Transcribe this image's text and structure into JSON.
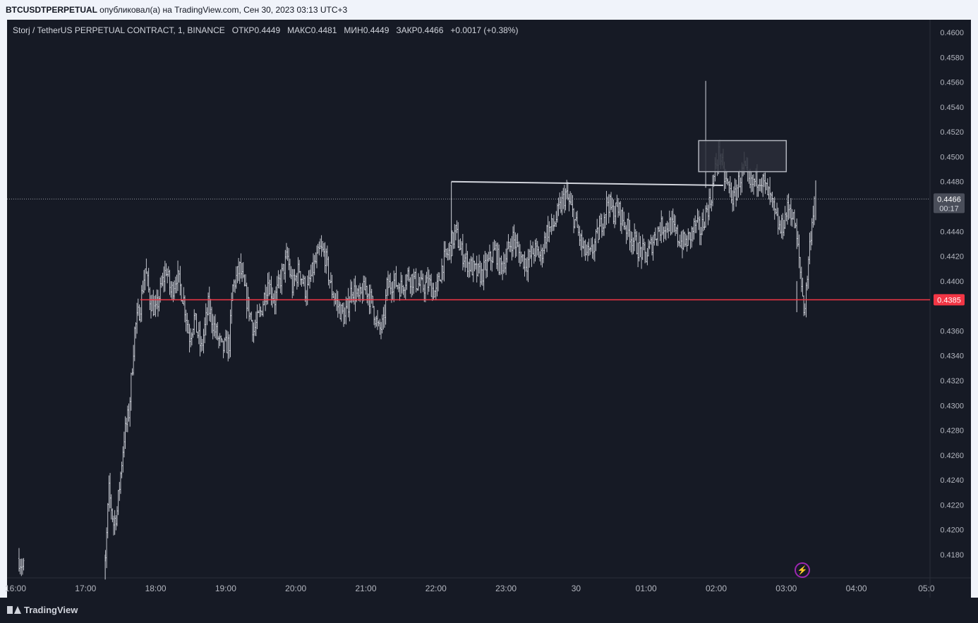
{
  "header": {
    "symbol": "BTCUSDTPERPETUAL",
    "published": "опубликовал(а) на TradingView.com, Сен 30, 2023 03:13 UTC+3"
  },
  "legend": {
    "title": "Storj / TetherUS PERPETUAL CONTRACT, 1, BINANCE",
    "open_label": "ОТКР",
    "open": "0.4449",
    "high_label": "МАКС",
    "high": "0.4481",
    "low_label": "МИН",
    "low": "0.4449",
    "close_label": "ЗАКР",
    "close": "0.4466",
    "change": "+0.0017 (+0.38%)"
  },
  "branding": {
    "logo_text": "TradingView"
  },
  "price_scale_badges": {
    "last_price": "0.4466",
    "countdown": "00:17",
    "level_price": "0.4385"
  },
  "chart_data": {
    "type": "bar",
    "subtype": "ohlc-minute",
    "x_axis_labels": [
      "16:00",
      "17:00",
      "18:00",
      "19:00",
      "20:00",
      "21:00",
      "22:00",
      "23:00",
      "30",
      "01:00",
      "02:00",
      "03:00",
      "04:00",
      "05:0"
    ],
    "y_ticks": [
      "0.4600",
      "0.4580",
      "0.4560",
      "0.4540",
      "0.4520",
      "0.4500",
      "0.4480",
      "0.4440",
      "0.4420",
      "0.4400",
      "0.4360",
      "0.4340",
      "0.4320",
      "0.4300",
      "0.4280",
      "0.4260",
      "0.4240",
      "0.4220",
      "0.4200",
      "0.4180"
    ],
    "ylim": [
      0.416,
      0.461
    ],
    "xlim_hours": [
      16.0,
      21.1
    ],
    "grid": false,
    "colors": {
      "background": "#161a25",
      "bars": "#d1d4dc",
      "level": "#f23645",
      "last_price_badge": "#4a4e5a",
      "text": "#b2b5be",
      "box_fill": "#2a2e39"
    },
    "close_path": [
      [
        16.05,
        0.4177
      ],
      [
        16.1,
        0.417
      ],
      [
        17.28,
        0.417
      ],
      [
        17.33,
        0.4232
      ],
      [
        17.4,
        0.4205
      ],
      [
        17.45,
        0.4215
      ],
      [
        17.5,
        0.4245
      ],
      [
        17.55,
        0.4275
      ],
      [
        17.62,
        0.4295
      ],
      [
        17.7,
        0.436
      ],
      [
        17.78,
        0.438
      ],
      [
        17.85,
        0.441
      ],
      [
        17.92,
        0.4385
      ],
      [
        18.0,
        0.4375
      ],
      [
        18.08,
        0.4395
      ],
      [
        18.15,
        0.441
      ],
      [
        18.22,
        0.439
      ],
      [
        18.3,
        0.4405
      ],
      [
        18.4,
        0.4385
      ],
      [
        18.48,
        0.4355
      ],
      [
        18.55,
        0.437
      ],
      [
        18.65,
        0.4345
      ],
      [
        18.75,
        0.438
      ],
      [
        18.85,
        0.436
      ],
      [
        18.95,
        0.4345
      ],
      [
        19.05,
        0.435
      ],
      [
        19.1,
        0.4395
      ],
      [
        19.2,
        0.441
      ],
      [
        19.3,
        0.4385
      ],
      [
        19.4,
        0.436
      ],
      [
        19.5,
        0.4375
      ],
      [
        19.6,
        0.44
      ],
      [
        19.7,
        0.4385
      ],
      [
        19.8,
        0.4405
      ],
      [
        19.88,
        0.442
      ],
      [
        19.95,
        0.4395
      ],
      [
        20.05,
        0.441
      ],
      [
        20.15,
        0.439
      ],
      [
        20.25,
        0.441
      ],
      [
        20.35,
        0.4425
      ],
      [
        20.42,
        0.442
      ],
      [
        20.5,
        0.4395
      ],
      [
        20.6,
        0.438
      ],
      [
        20.7,
        0.437
      ],
      [
        20.8,
        0.4395
      ],
      [
        20.9,
        0.4385
      ],
      [
        21.0,
        0.4395
      ],
      [
        21.1,
        0.438
      ],
      [
        21.18,
        0.436
      ],
      [
        21.25,
        0.4365
      ],
      [
        21.3,
        0.4395
      ],
      [
        21.4,
        0.44
      ],
      [
        21.5,
        0.4395
      ],
      [
        21.6,
        0.4405
      ],
      [
        21.7,
        0.44
      ],
      [
        21.8,
        0.4395
      ],
      [
        21.9,
        0.4398
      ],
      [
        22.0,
        0.439
      ],
      [
        22.1,
        0.4415
      ],
      [
        22.2,
        0.4425
      ],
      [
        22.28,
        0.444
      ],
      [
        22.35,
        0.4425
      ],
      [
        22.45,
        0.4415
      ],
      [
        22.55,
        0.4408
      ],
      [
        22.65,
        0.4405
      ],
      [
        22.75,
        0.4415
      ],
      [
        22.85,
        0.4425
      ],
      [
        22.92,
        0.441
      ],
      [
        23.0,
        0.442
      ],
      [
        23.1,
        0.4435
      ],
      [
        23.2,
        0.442
      ],
      [
        23.3,
        0.4415
      ],
      [
        23.4,
        0.4425
      ],
      [
        23.5,
        0.442
      ],
      [
        23.58,
        0.444
      ],
      [
        23.68,
        0.4445
      ],
      [
        23.78,
        0.446
      ],
      [
        23.85,
        0.447
      ],
      [
        23.92,
        0.446
      ],
      [
        24.0,
        0.4445
      ],
      [
        24.1,
        0.4425
      ],
      [
        24.2,
        0.442
      ],
      [
        24.3,
        0.4435
      ],
      [
        24.38,
        0.445
      ],
      [
        24.45,
        0.4465
      ],
      [
        24.52,
        0.4455
      ],
      [
        24.6,
        0.4458
      ],
      [
        24.7,
        0.4445
      ],
      [
        24.8,
        0.4435
      ],
      [
        24.9,
        0.4425
      ],
      [
        25.0,
        0.442
      ],
      [
        25.08,
        0.443
      ],
      [
        25.15,
        0.444
      ],
      [
        25.25,
        0.4445
      ],
      [
        25.35,
        0.4445
      ],
      [
        25.45,
        0.4435
      ],
      [
        25.55,
        0.443
      ],
      [
        25.62,
        0.4435
      ],
      [
        25.7,
        0.4445
      ],
      [
        25.78,
        0.444
      ],
      [
        25.85,
        0.4455
      ],
      [
        25.92,
        0.4465
      ],
      [
        26.0,
        0.4495
      ],
      [
        26.05,
        0.4505
      ],
      [
        26.1,
        0.4485
      ],
      [
        26.18,
        0.4475
      ],
      [
        26.25,
        0.4465
      ],
      [
        26.32,
        0.448
      ],
      [
        26.4,
        0.449
      ],
      [
        26.48,
        0.4475
      ],
      [
        26.55,
        0.448
      ],
      [
        26.62,
        0.4485
      ],
      [
        26.7,
        0.4475
      ],
      [
        26.78,
        0.4465
      ],
      [
        26.85,
        0.445
      ],
      [
        26.92,
        0.444
      ],
      [
        27.0,
        0.4455
      ],
      [
        27.05,
        0.446
      ],
      [
        27.12,
        0.4445
      ],
      [
        27.18,
        0.442
      ],
      [
        27.22,
        0.4395
      ],
      [
        27.26,
        0.4375
      ],
      [
        27.3,
        0.4405
      ],
      [
        27.35,
        0.444
      ],
      [
        27.4,
        0.4466
      ]
    ],
    "level_line": {
      "value": 0.4385,
      "x_start": 17.78,
      "x_end": 27.6
    },
    "trend_line": {
      "from": [
        22.22,
        0.448
      ],
      "to": [
        26.1,
        0.4477
      ]
    },
    "box": {
      "x_start": 25.75,
      "x_end": 27.0,
      "y_low": 0.4488,
      "y_high": 0.4513
    },
    "spikes": [
      {
        "x": 25.85,
        "high": 0.4561,
        "low": 0.4475
      },
      {
        "x": 22.22,
        "high": 0.448,
        "low": 0.443
      },
      {
        "x": 27.42,
        "high": 0.4481,
        "low": 0.4449
      },
      {
        "x": 27.15,
        "high": 0.44,
        "low": 0.4375
      },
      {
        "x": 17.28,
        "high": 0.418,
        "low": 0.416
      }
    ],
    "last_price": 0.4466
  }
}
